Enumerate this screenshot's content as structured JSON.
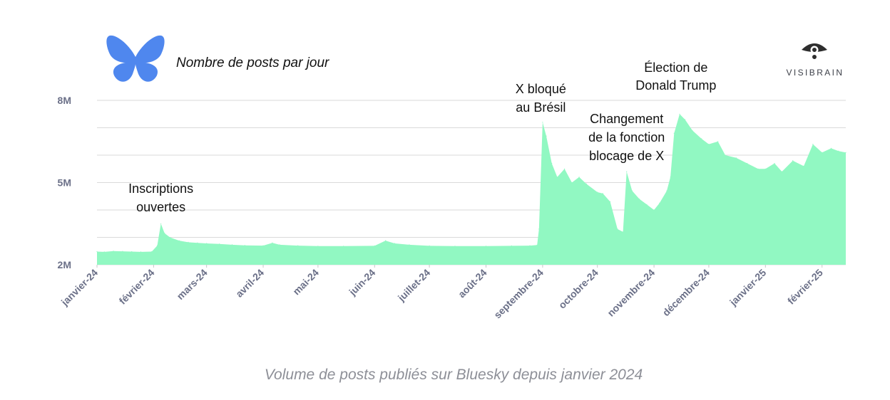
{
  "subtitle": "Nombre de posts par jour",
  "caption": "Volume de posts publiés sur Bluesky depuis janvier 2024",
  "brand": {
    "name": "VISIBRAIN"
  },
  "logo": {
    "icon": "bluesky-butterfly-icon",
    "color": "#4f87ee"
  },
  "colors": {
    "area": "#91f8c2",
    "grid": "#dadada",
    "tick_text": "#6b7088"
  },
  "annotations": [
    {
      "lines": [
        "Inscriptions",
        "ouvertes"
      ],
      "date": "2024-02-05"
    },
    {
      "lines": [
        "X bloqué",
        "au Brésil"
      ],
      "date": "2024-08-31"
    },
    {
      "lines": [
        "Changement",
        "de la fonction",
        "blocage de X"
      ],
      "date": "2024-10-17"
    },
    {
      "lines": [
        "Élection de",
        "Donald Trump"
      ],
      "date": "2024-11-13"
    }
  ],
  "chart_data": {
    "type": "area",
    "title": "",
    "xlabel": "",
    "ylabel": "",
    "y_tick_labels": [
      {
        "value": 2000000,
        "label": "2M"
      },
      {
        "value": 5000000,
        "label": "5M"
      },
      {
        "value": 8000000,
        "label": "8M"
      }
    ],
    "x_tick_labels": [
      {
        "date": "2024-01-01",
        "label": "janvier-24"
      },
      {
        "date": "2024-02-01",
        "label": "février-24"
      },
      {
        "date": "2024-03-01",
        "label": "mars-24"
      },
      {
        "date": "2024-04-01",
        "label": "avril-24"
      },
      {
        "date": "2024-05-01",
        "label": "mai-24"
      },
      {
        "date": "2024-06-01",
        "label": "juin-24"
      },
      {
        "date": "2024-07-01",
        "label": "juillet-24"
      },
      {
        "date": "2024-08-01",
        "label": "août-24"
      },
      {
        "date": "2024-09-01",
        "label": "septembre-24"
      },
      {
        "date": "2024-10-01",
        "label": "octobre-24"
      },
      {
        "date": "2024-11-01",
        "label": "novembre-24"
      },
      {
        "date": "2024-12-01",
        "label": "décembre-24"
      },
      {
        "date": "2025-01-01",
        "label": "janvier-25"
      },
      {
        "date": "2025-02-01",
        "label": "février-25"
      }
    ],
    "ylim": [
      2000000,
      8000000
    ],
    "xlim": [
      "2024-01-01",
      "2025-02-14"
    ],
    "grid": true,
    "series": [
      {
        "values": [
          [
            "2024-01-01",
            2480000
          ],
          [
            "2024-01-05",
            2470000
          ],
          [
            "2024-01-10",
            2500000
          ],
          [
            "2024-01-15",
            2490000
          ],
          [
            "2024-01-20",
            2480000
          ],
          [
            "2024-01-25",
            2470000
          ],
          [
            "2024-01-31",
            2480000
          ],
          [
            "2024-02-03",
            2700000
          ],
          [
            "2024-02-05",
            3500000
          ],
          [
            "2024-02-07",
            3150000
          ],
          [
            "2024-02-10",
            3000000
          ],
          [
            "2024-02-15",
            2880000
          ],
          [
            "2024-02-20",
            2820000
          ],
          [
            "2024-02-25",
            2800000
          ],
          [
            "2024-03-01",
            2780000
          ],
          [
            "2024-03-08",
            2760000
          ],
          [
            "2024-03-15",
            2730000
          ],
          [
            "2024-03-22",
            2710000
          ],
          [
            "2024-04-01",
            2700000
          ],
          [
            "2024-04-06",
            2800000
          ],
          [
            "2024-04-10",
            2730000
          ],
          [
            "2024-04-20",
            2700000
          ],
          [
            "2024-05-01",
            2680000
          ],
          [
            "2024-05-15",
            2680000
          ],
          [
            "2024-06-01",
            2690000
          ],
          [
            "2024-06-07",
            2880000
          ],
          [
            "2024-06-12",
            2780000
          ],
          [
            "2024-06-20",
            2730000
          ],
          [
            "2024-07-01",
            2690000
          ],
          [
            "2024-07-15",
            2680000
          ],
          [
            "2024-08-01",
            2680000
          ],
          [
            "2024-08-15",
            2690000
          ],
          [
            "2024-08-25",
            2700000
          ],
          [
            "2024-08-29",
            2720000
          ],
          [
            "2024-08-30",
            3300000
          ],
          [
            "2024-09-01",
            7200000
          ],
          [
            "2024-09-03",
            6700000
          ],
          [
            "2024-09-06",
            5700000
          ],
          [
            "2024-09-09",
            5200000
          ],
          [
            "2024-09-13",
            5500000
          ],
          [
            "2024-09-17",
            5000000
          ],
          [
            "2024-09-21",
            5200000
          ],
          [
            "2024-09-25",
            4950000
          ],
          [
            "2024-10-01",
            4650000
          ],
          [
            "2024-10-04",
            4600000
          ],
          [
            "2024-10-08",
            4300000
          ],
          [
            "2024-10-12",
            3300000
          ],
          [
            "2024-10-15",
            3200000
          ],
          [
            "2024-10-17",
            5400000
          ],
          [
            "2024-10-20",
            4700000
          ],
          [
            "2024-10-24",
            4400000
          ],
          [
            "2024-10-28",
            4200000
          ],
          [
            "2024-11-01",
            4000000
          ],
          [
            "2024-11-04",
            4250000
          ],
          [
            "2024-11-08",
            4700000
          ],
          [
            "2024-11-10",
            5200000
          ],
          [
            "2024-11-12",
            6800000
          ],
          [
            "2024-11-15",
            7500000
          ],
          [
            "2024-11-18",
            7300000
          ],
          [
            "2024-11-22",
            6900000
          ],
          [
            "2024-11-27",
            6600000
          ],
          [
            "2024-12-01",
            6400000
          ],
          [
            "2024-12-06",
            6500000
          ],
          [
            "2024-12-10",
            6000000
          ],
          [
            "2024-12-16",
            5900000
          ],
          [
            "2024-12-22",
            5700000
          ],
          [
            "2024-12-28",
            5500000
          ],
          [
            "2025-01-01",
            5500000
          ],
          [
            "2025-01-06",
            5700000
          ],
          [
            "2025-01-10",
            5400000
          ],
          [
            "2025-01-16",
            5800000
          ],
          [
            "2025-01-22",
            5600000
          ],
          [
            "2025-01-27",
            6400000
          ],
          [
            "2025-02-01",
            6100000
          ],
          [
            "2025-02-06",
            6250000
          ],
          [
            "2025-02-10",
            6150000
          ],
          [
            "2025-02-14",
            6100000
          ]
        ]
      }
    ]
  }
}
